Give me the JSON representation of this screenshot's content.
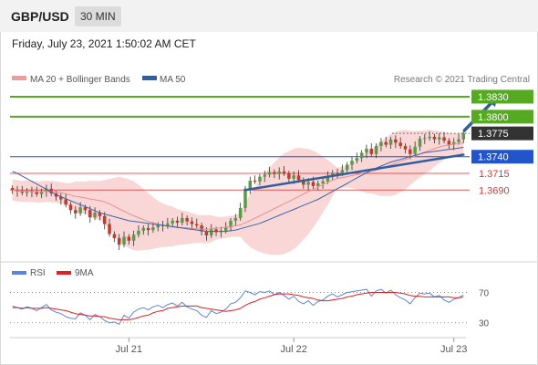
{
  "header": {
    "symbol": "GBP/USD",
    "timeframe": "30 MIN"
  },
  "timestamp": "Friday, July 23, 2021 1:50:02 AM CET",
  "legend": {
    "ma20": "MA 20 + Bollinger Bands",
    "ma50": "MA 50",
    "credit": "Research © 2021 Trading Central",
    "rsi": "RSI",
    "rsi_ma": "9MA"
  },
  "colors": {
    "resistance": "#55aa22",
    "pivot": "#2255cc",
    "support": "#dd3333",
    "bollinger": "#f7c9c9",
    "ma20": "#ea8f8f",
    "ma50": "#3a64a8",
    "rsi": "#5b86d6",
    "rsi_ma": "#dd2222",
    "candle_up": "#5a9a48",
    "candle_down": "#c23b2a",
    "arrow": "#2f5f9e",
    "current_price_bg": "#333333"
  },
  "chart_data": [
    {
      "type": "candlestick",
      "title": "GBP/USD",
      "x_ticks": [
        "Jul 21",
        "Jul 22",
        "Jul 23"
      ],
      "y_range": [
        1.3585,
        1.3845
      ],
      "levels": [
        {
          "label": "1.3830",
          "value": 1.383,
          "kind": "resistance"
        },
        {
          "label": "1.3800",
          "value": 1.38,
          "kind": "resistance"
        },
        {
          "label": "1.3775",
          "value": 1.3775,
          "kind": "current"
        },
        {
          "label": "1.3740",
          "value": 1.374,
          "kind": "pivot"
        },
        {
          "label": "1.3715",
          "value": 1.3715,
          "kind": "support"
        },
        {
          "label": "1.3690",
          "value": 1.369,
          "kind": "support"
        }
      ],
      "close": [
        1.369,
        1.3688,
        1.3686,
        1.3689,
        1.3687,
        1.3684,
        1.3688,
        1.3692,
        1.3685,
        1.368,
        1.3676,
        1.3668,
        1.366,
        1.3655,
        1.3664,
        1.366,
        1.3649,
        1.3656,
        1.3651,
        1.3639,
        1.3624,
        1.3618,
        1.3608,
        1.362,
        1.3614,
        1.3623,
        1.3629,
        1.3633,
        1.363,
        1.3634,
        1.3638,
        1.3636,
        1.364,
        1.3644,
        1.3641,
        1.3648,
        1.3643,
        1.3639,
        1.3637,
        1.3628,
        1.3622,
        1.3631,
        1.3627,
        1.3629,
        1.3634,
        1.3644,
        1.3648,
        1.3663,
        1.3692,
        1.3704,
        1.3703,
        1.371,
        1.3713,
        1.3717,
        1.3714,
        1.3718,
        1.3715,
        1.3707,
        1.3712,
        1.3705,
        1.3698,
        1.3702,
        1.3696,
        1.37,
        1.3703,
        1.371,
        1.3716,
        1.3715,
        1.372,
        1.3728,
        1.3734,
        1.3738,
        1.3746,
        1.3752,
        1.3744,
        1.3756,
        1.3762,
        1.3758,
        1.3766,
        1.3761,
        1.3756,
        1.3751,
        1.3744,
        1.3755,
        1.3767,
        1.3768,
        1.377,
        1.3766,
        1.3769,
        1.3764,
        1.3758,
        1.3762,
        1.3766,
        1.3775
      ],
      "ma50": [
        1.3718,
        1.3715,
        1.3711,
        1.3707,
        1.3703,
        1.3699,
        1.3695,
        1.3691,
        1.3687,
        1.3683,
        1.368,
        1.3677,
        1.3674,
        1.3671,
        1.3668,
        1.3665,
        1.3662,
        1.3659,
        1.3656,
        1.3654,
        1.3652,
        1.365,
        1.3648,
        1.3646,
        1.3644,
        1.3643,
        1.3642,
        1.3641,
        1.364,
        1.3639,
        1.3638,
        1.3637,
        1.3636,
        1.3635,
        1.3634,
        1.3633,
        1.3632,
        1.3631,
        1.363,
        1.3629,
        1.3628,
        1.3628,
        1.3628,
        1.3628,
        1.3628,
        1.3629,
        1.363,
        1.3632,
        1.3634,
        1.3636,
        1.3638,
        1.364,
        1.3643,
        1.3646,
        1.3649,
        1.3652,
        1.3655,
        1.3658,
        1.3661,
        1.3664,
        1.3667,
        1.367,
        1.3673,
        1.3676,
        1.368,
        1.3684,
        1.3688,
        1.3692,
        1.3696,
        1.37,
        1.3704,
        1.3708,
        1.3712,
        1.3716,
        1.372,
        1.3723,
        1.3726,
        1.3729,
        1.3732,
        1.3734,
        1.3736,
        1.3738,
        1.374,
        1.3742,
        1.3744,
        1.3746,
        1.3747,
        1.3748,
        1.3749,
        1.375,
        1.3751,
        1.3752,
        1.3753,
        1.3754
      ],
      "trendline": {
        "from_index": 48,
        "from_value": 1.369,
        "to_index": 93,
        "to_value": 1.3743
      },
      "arrow": {
        "from_index": 93,
        "from_value": 1.3778,
        "to_index": 100,
        "to_value": 1.383
      }
    },
    {
      "type": "line",
      "title": "RSI",
      "y_range": [
        20,
        85
      ],
      "y_ticks": [
        30,
        70
      ],
      "series": [
        {
          "name": "RSI",
          "values": [
            52,
            50,
            48,
            51,
            49,
            46,
            50,
            54,
            47,
            44,
            42,
            38,
            36,
            35,
            43,
            40,
            34,
            41,
            38,
            33,
            30,
            31,
            28,
            40,
            36,
            44,
            48,
            50,
            47,
            51,
            53,
            50,
            54,
            56,
            52,
            57,
            51,
            48,
            46,
            40,
            37,
            46,
            42,
            44,
            48,
            55,
            57,
            63,
            72,
            70,
            67,
            71,
            70,
            72,
            67,
            70,
            66,
            61,
            65,
            58,
            55,
            59,
            53,
            58,
            60,
            65,
            68,
            64,
            67,
            70,
            71,
            72,
            73,
            74,
            65,
            72,
            74,
            69,
            73,
            67,
            63,
            60,
            55,
            63,
            69,
            68,
            69,
            64,
            66,
            60,
            57,
            61,
            63,
            67
          ]
        },
        {
          "name": "9MA",
          "values": [
            50,
            50,
            49,
            50,
            49,
            49,
            49,
            50,
            49,
            48,
            47,
            46,
            44,
            42,
            41,
            40,
            39,
            39,
            38,
            38,
            36,
            35,
            34,
            34,
            34,
            35,
            37,
            39,
            40,
            43,
            45,
            46,
            49,
            50,
            51,
            52,
            52,
            52,
            52,
            50,
            49,
            48,
            47,
            46,
            45,
            46,
            47,
            49,
            53,
            56,
            58,
            61,
            63,
            65,
            67,
            68,
            68,
            68,
            67,
            66,
            64,
            63,
            62,
            60,
            59,
            59,
            60,
            61,
            62,
            64,
            65,
            67,
            68,
            69,
            70,
            70,
            70,
            70,
            70,
            70,
            69,
            68,
            66,
            65,
            65,
            64,
            64,
            64,
            64,
            64,
            64,
            63,
            63,
            64
          ]
        }
      ]
    }
  ]
}
